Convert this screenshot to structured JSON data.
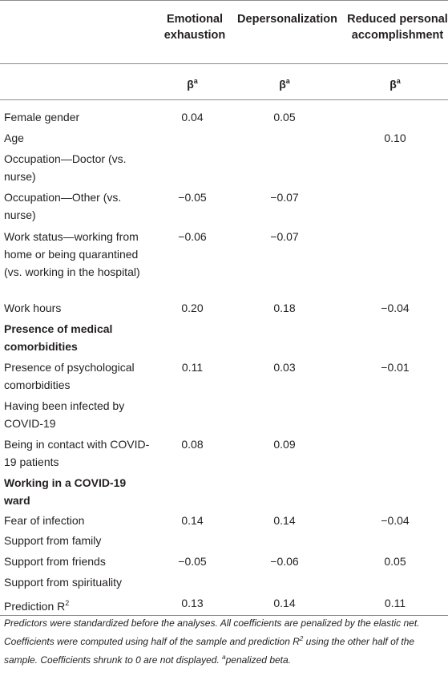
{
  "header": {
    "col1": "Emotional exhaustion",
    "col2": "Depersonalization",
    "col3": "Reduced personal accomplishment",
    "beta_symbol": "β",
    "beta_sup": "a"
  },
  "rows": [
    {
      "label": "Female gender",
      "ee": "0.04",
      "dp": "0.05",
      "rpa": ""
    },
    {
      "label": "Age",
      "ee": "",
      "dp": "",
      "rpa": "0.10"
    },
    {
      "label": "Occupation—Doctor (vs. nurse)",
      "ee": "",
      "dp": "",
      "rpa": ""
    },
    {
      "label": "Occupation—Other (vs. nurse)",
      "ee": "−0.05",
      "dp": "−0.07",
      "rpa": ""
    },
    {
      "label": "Work status—working from home or being quarantined (vs. working in the hospital)",
      "ee": "−0.06",
      "dp": "−0.07",
      "rpa": ""
    },
    {
      "label": "Work hours",
      "ee": "0.20",
      "dp": "0.18",
      "rpa": "−0.04"
    },
    {
      "label": "Presence of medical comorbidities",
      "ee": "",
      "dp": "",
      "rpa": ""
    },
    {
      "label": "Presence of psychological comorbidities",
      "ee": "0.11",
      "dp": "0.03",
      "rpa": "−0.01"
    },
    {
      "label": "Having been infected by COVID-19",
      "ee": "",
      "dp": "",
      "rpa": ""
    },
    {
      "label": "Being in contact with COVID-19 patients",
      "ee": "0.08",
      "dp": "0.09",
      "rpa": ""
    },
    {
      "label": "Working in a COVID-19 ward",
      "ee": "",
      "dp": "",
      "rpa": ""
    },
    {
      "label": "Fear of infection",
      "ee": "0.14",
      "dp": "0.14",
      "rpa": "−0.04"
    },
    {
      "label": "Support from family",
      "ee": "",
      "dp": "",
      "rpa": ""
    },
    {
      "label": "Support from friends",
      "ee": "−0.05",
      "dp": "−0.06",
      "rpa": "0.05"
    },
    {
      "label": "Support from spirituality",
      "ee": "",
      "dp": "",
      "rpa": ""
    }
  ],
  "r2_row": {
    "label": "Prediction R",
    "label_sup": "2",
    "ee": "0.13",
    "dp": "0.14",
    "rpa": "0.11"
  },
  "footnote": {
    "text1": "Predictors were standardized before the analyses. All coefficients are penalized by the elastic net. Coefficients were computed using half of the sample and prediction R",
    "sup1": "2",
    "text2": " using the other half of the sample. Coefficients shrunk to 0 are not displayed. ",
    "sup2": "a",
    "text3": "penalized beta."
  }
}
